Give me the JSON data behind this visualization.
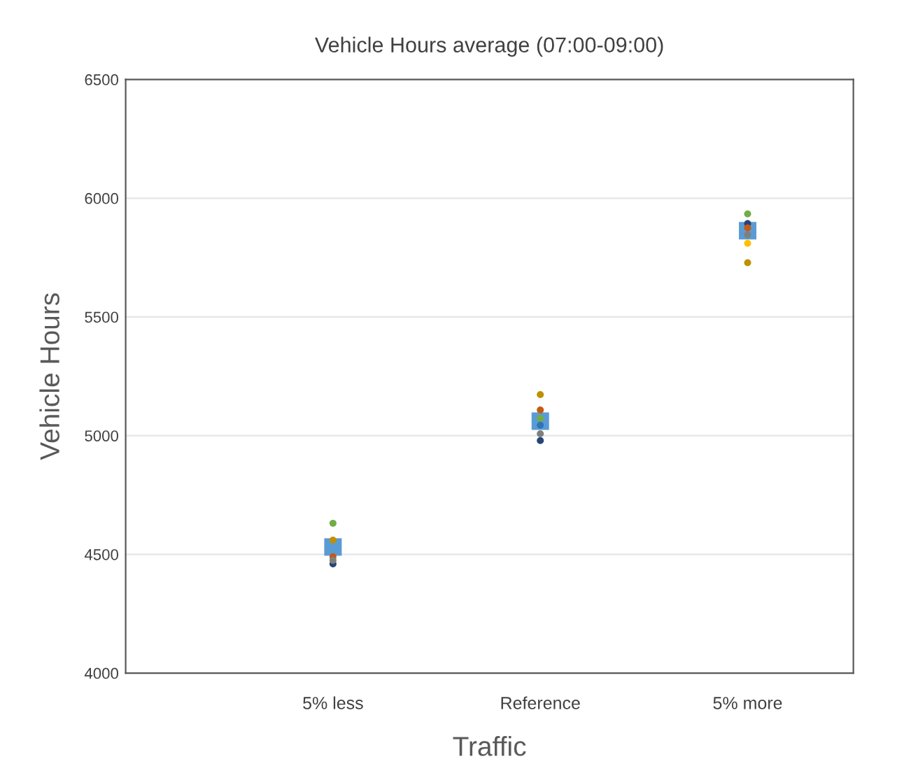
{
  "chart_data": {
    "type": "scatter",
    "title": "Vehicle Hours average (07:00-09:00)",
    "xlabel": "Traffic",
    "ylabel": "Vehicle Hours",
    "categories": [
      "5% less",
      "Reference",
      "5% more"
    ],
    "ylim": [
      4000,
      6500
    ],
    "yticks": [
      4000,
      4500,
      5000,
      5500,
      6000,
      6500
    ],
    "grid": "y",
    "marker": "circle",
    "series": [
      {
        "color": "#5b9bd5",
        "marker": "square",
        "values": [
          4531,
          5061,
          5863
        ]
      },
      {
        "color": "#264478",
        "values": [
          4460,
          4979,
          5893
        ]
      },
      {
        "color": "#70ad47",
        "values": [
          4631,
          5073,
          5934
        ]
      },
      {
        "color": "#bf9000",
        "values": [
          4560,
          5173,
          5728
        ]
      },
      {
        "color": "#c55a11",
        "values": [
          4490,
          5108,
          5875
        ]
      },
      {
        "color": "#7f7f7f",
        "values": [
          4475,
          5008,
          5846
        ]
      },
      {
        "color": "#2e75b6",
        "values": [
          null,
          5044,
          null
        ]
      },
      {
        "color": "#ffc000",
        "values": [
          null,
          null,
          5810
        ]
      }
    ]
  }
}
